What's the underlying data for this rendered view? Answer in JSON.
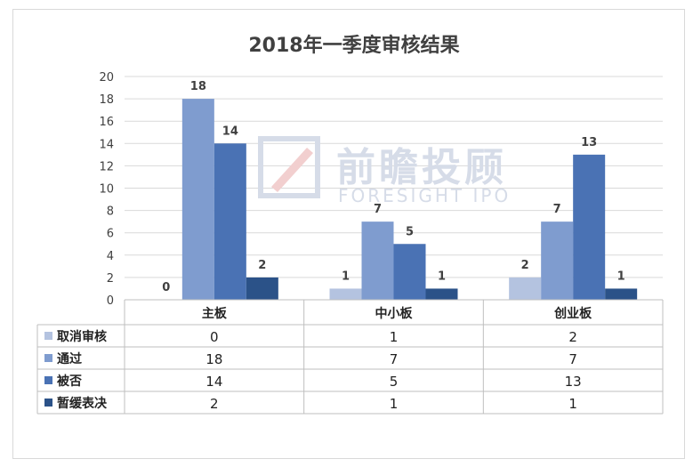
{
  "chart_data": {
    "type": "bar",
    "title": "2018年一季度审核结果",
    "categories": [
      "主板",
      "中小板",
      "创业板"
    ],
    "series": [
      {
        "name": "取消审核",
        "color": "#b4c3e0",
        "values": [
          0,
          1,
          2
        ]
      },
      {
        "name": "通过",
        "color": "#7f9ccf",
        "values": [
          18,
          7,
          7
        ]
      },
      {
        "name": "被否",
        "color": "#4a72b4",
        "values": [
          14,
          5,
          13
        ]
      },
      {
        "name": "暂缓表决",
        "color": "#2b5288",
        "values": [
          2,
          1,
          1
        ]
      }
    ],
    "ylim": [
      0,
      20
    ],
    "yticks": [
      0,
      2,
      4,
      6,
      8,
      10,
      12,
      14,
      16,
      18,
      20
    ],
    "grid": true,
    "legend": "data-table"
  },
  "watermark": {
    "cn": "前瞻投顾",
    "en": "FORESIGHT IPO"
  }
}
